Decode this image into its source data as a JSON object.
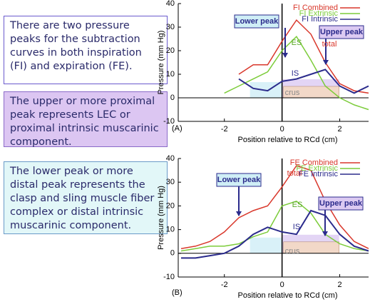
{
  "text_boxes": [
    "There are two pressure peaks for the subtraction curves in both inspiration (FI) and expiration (FE).",
    "The upper or more proximal peak represents LEC or proximal intrinsic muscarinic component.",
    "The lower peak or more distal peak represents the clasp and sling muscle fiber complex or distal intrinsic muscarinic component."
  ],
  "chart_data": [
    {
      "type": "line",
      "panel_label": "(A)",
      "x_label": "Position relative to RCd (cm)",
      "y_label": "Pressure (mm Hg)",
      "x": [
        -3.5,
        -3,
        -2.5,
        -2,
        -1.5,
        -1,
        -0.5,
        0,
        0.5,
        1,
        1.5,
        2,
        2.5,
        3
      ],
      "series": [
        {
          "name": "FI Combined",
          "color": "#d9372b",
          "values": [
            null,
            null,
            null,
            null,
            10,
            14,
            14,
            24,
            33,
            27,
            15,
            6,
            3,
            2
          ]
        },
        {
          "name": "FI Extrinsic",
          "color": "#7ccc3a",
          "values": [
            null,
            null,
            null,
            2,
            5,
            8,
            11,
            20,
            26,
            16,
            5,
            0,
            -3,
            -5
          ]
        },
        {
          "name": "FI Intrinsic",
          "color": "#2b2b8c",
          "values": [
            null,
            null,
            null,
            null,
            8,
            4,
            3,
            7,
            8,
            10,
            12,
            5,
            2,
            5
          ]
        }
      ],
      "annotations": [
        "Lower peak",
        "Upper peak",
        "ES",
        "total",
        "IS",
        "crus"
      ],
      "xlim": [
        -3.6,
        3
      ],
      "xticks": [
        -2,
        0,
        2
      ],
      "ylim": [
        -10,
        40
      ],
      "yticks": [
        -10,
        0,
        10,
        20,
        30,
        40
      ],
      "grid": false
    },
    {
      "type": "line",
      "panel_label": "(B)",
      "x_label": "Position relative to RCd (cm)",
      "y_label": "Pressure (mm Hg)",
      "x": [
        -3.5,
        -3,
        -2.5,
        -2,
        -1.5,
        -1,
        -0.5,
        0,
        0.5,
        1,
        1.5,
        2,
        2.5,
        3
      ],
      "series": [
        {
          "name": "FE Combined",
          "color": "#d9372b",
          "values": [
            2,
            3,
            5,
            9,
            15,
            18,
            20,
            28,
            37,
            35,
            22,
            12,
            5,
            2
          ]
        },
        {
          "name": "FE Extrinsic",
          "color": "#7ccc3a",
          "values": [
            1,
            2,
            3,
            3,
            4,
            7,
            9,
            20,
            22,
            17,
            8,
            4,
            2,
            1
          ]
        },
        {
          "name": "FE Intrinsic",
          "color": "#2b2b8c",
          "values": [
            -2,
            -2,
            -1,
            0,
            3,
            8,
            11,
            9,
            8,
            18,
            16,
            8,
            3,
            1
          ]
        }
      ],
      "annotations": [
        "Lower peak",
        "Upper peak",
        "ES",
        "total",
        "IS",
        "crus"
      ],
      "xlim": [
        -3.6,
        3
      ],
      "xticks": [
        -2,
        0,
        2
      ],
      "ylim": [
        -10,
        40
      ],
      "yticks": [
        -10,
        0,
        10,
        20,
        30,
        40
      ],
      "grid": false
    }
  ]
}
